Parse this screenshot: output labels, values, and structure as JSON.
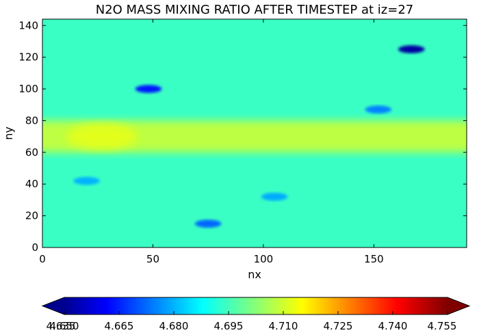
{
  "chart_data": {
    "type": "heatmap",
    "title": "N2O MASS MIXING RATIO AFTER TIMESTEP at iz=27",
    "xlabel": "nx",
    "ylabel": "ny",
    "xlim": [
      0,
      192
    ],
    "ylim": [
      0,
      144
    ],
    "x_ticks": [
      0,
      50,
      100,
      150
    ],
    "y_ticks": [
      0,
      20,
      40,
      60,
      80,
      100,
      120,
      140
    ],
    "colorbar": {
      "colormap": "jet",
      "extend": "both",
      "vmin": 4.65,
      "vmax": 4.755,
      "tick_labels": [
        "4.650",
        "4.665",
        "4.680",
        "4.695",
        "4.710",
        "4.725",
        "4.740",
        "4.755"
      ],
      "overlapping_left_label": "4.635"
    },
    "field_description_values": {
      "background_value": 4.694,
      "zonal_band_high": {
        "y_range": [
          60,
          80
        ],
        "value": 4.708
      },
      "peak_region": {
        "x": 27,
        "y": 70,
        "value": 4.712
      },
      "low_patches": [
        {
          "x": 167,
          "y": 125,
          "value": 4.652
        },
        {
          "x": 48,
          "y": 100,
          "value": 4.664
        },
        {
          "x": 75,
          "y": 15,
          "value": 4.672
        },
        {
          "x": 152,
          "y": 87,
          "value": 4.675
        },
        {
          "x": 105,
          "y": 32,
          "value": 4.679
        },
        {
          "x": 20,
          "y": 42,
          "value": 4.68
        }
      ]
    }
  }
}
